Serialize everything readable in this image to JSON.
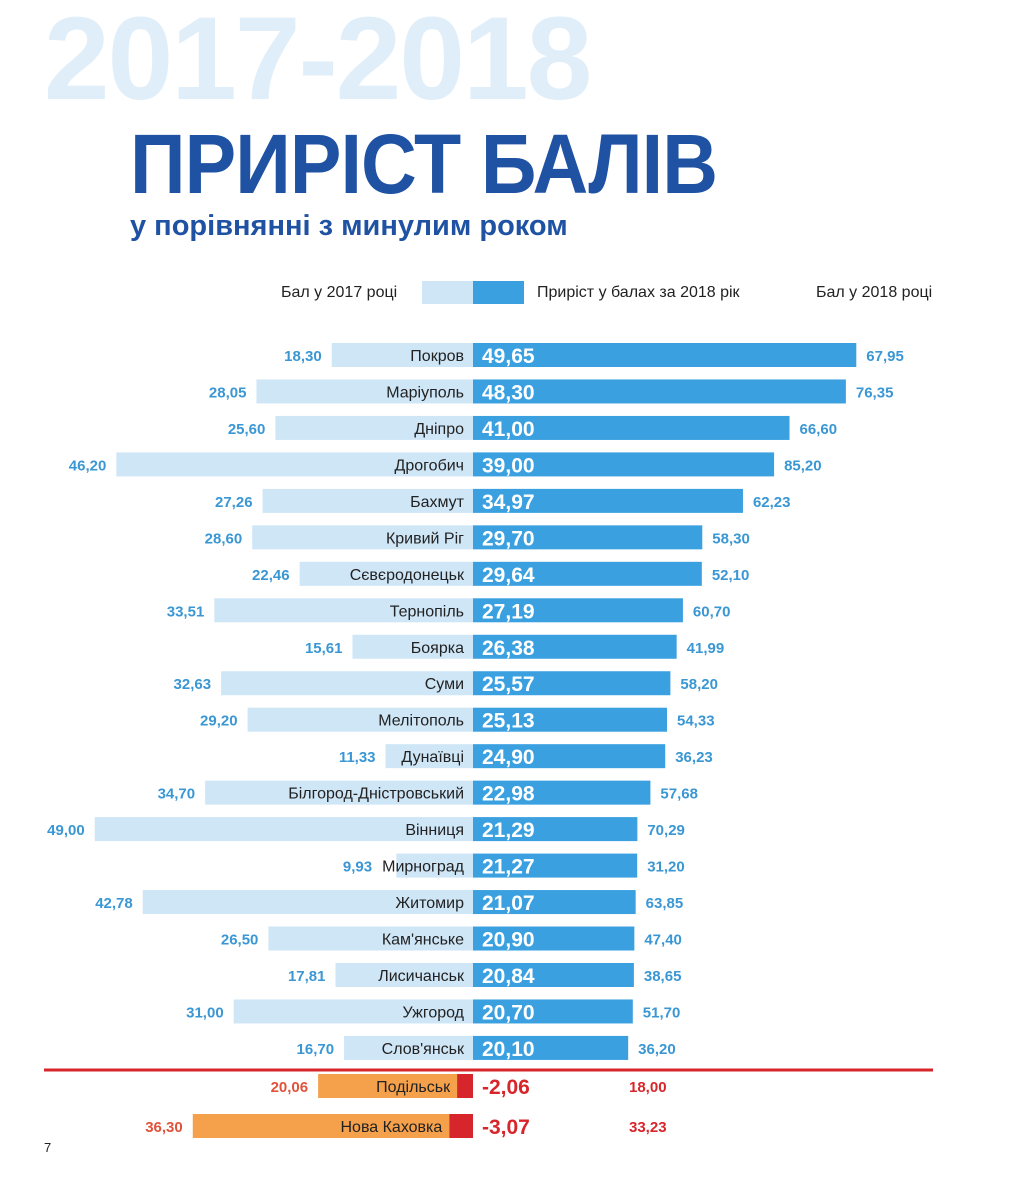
{
  "header": {
    "background_years": "2017-2018",
    "title": "ПРИРІСТ БАЛІВ",
    "subtitle": "у порівнянні з минулим роком"
  },
  "page_number": "7",
  "chart_data": {
    "type": "bar",
    "title": "ПРИРІСТ БАЛІВ",
    "subtitle": "у порівнянні з минулим роком",
    "legend": {
      "score_2017": "Бал у 2017 році",
      "growth": "Приріст у балах за 2018 рік",
      "score_2018": "Бал у 2018 році",
      "placement": "top"
    },
    "colors": {
      "score_2017": "#cfe6f7",
      "growth": "#3aa0e0",
      "value_blue": "#3a97d4",
      "decline_base": "#f5a04a",
      "decline": "#d7262b",
      "separator": "#d7262b",
      "decline_text": "#d7262b",
      "title": "#1f52a3",
      "background_years": "#dfeef9"
    },
    "categories": [
      "Покров",
      "Маріуполь",
      "Дніпро",
      "Дрогобич",
      "Бахмут",
      "Кривий Ріг",
      "Сєвєродонецьк",
      "Тернопіль",
      "Боярка",
      "Суми",
      "Мелітополь",
      "Дунаївці",
      "Білгород-Дністровський",
      "Вінниця",
      "Мирноград",
      "Житомир",
      "Кам'янське",
      "Лисичанськ",
      "Ужгород",
      "Слов'янськ",
      "Подільськ",
      "Нова Каховка"
    ],
    "series": [
      {
        "name": "Бал у 2017 році",
        "values": [
          "18,30",
          "28,05",
          "25,60",
          "46,20",
          "27,26",
          "28,60",
          "22,46",
          "33,51",
          "15,61",
          "32,63",
          "29,20",
          "11,33",
          "34,70",
          "49,00",
          "9,93",
          "42,78",
          "26,50",
          "17,81",
          "31,00",
          "16,70",
          "20,06",
          "36,30"
        ]
      },
      {
        "name": "Приріст у балах за 2018 рік",
        "values": [
          "49,65",
          "48,30",
          "41,00",
          "39,00",
          "34,97",
          "29,70",
          "29,64",
          "27,19",
          "26,38",
          "25,57",
          "25,13",
          "24,90",
          "22,98",
          "21,29",
          "21,27",
          "21,07",
          "20,90",
          "20,84",
          "20,70",
          "20,10",
          "-2,06",
          "-3,07"
        ]
      },
      {
        "name": "Бал у 2018 році",
        "values": [
          "67,95",
          "76,35",
          "66,60",
          "85,20",
          "62,23",
          "58,30",
          "52,10",
          "60,70",
          "41,99",
          "58,20",
          "54,33",
          "36,23",
          "57,68",
          "70,29",
          "31,20",
          "63,85",
          "47,40",
          "38,65",
          "51,70",
          "36,20",
          "18,00",
          "33,23"
        ]
      }
    ]
  }
}
